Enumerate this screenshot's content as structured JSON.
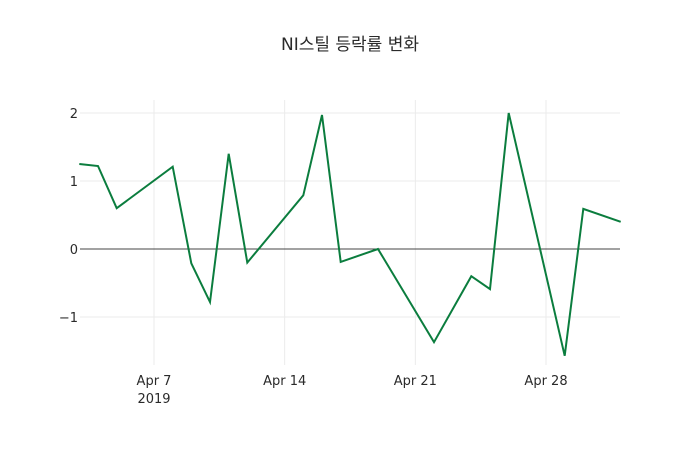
{
  "chart_data": {
    "type": "line",
    "title": "NI스틸 등락률 변화",
    "xlabel": "",
    "ylabel": "",
    "x": [
      "2019-04-03",
      "2019-04-04",
      "2019-04-05",
      "2019-04-08",
      "2019-04-09",
      "2019-04-10",
      "2019-04-11",
      "2019-04-12",
      "2019-04-15",
      "2019-04-16",
      "2019-04-17",
      "2019-04-19",
      "2019-04-22",
      "2019-04-24",
      "2019-04-25",
      "2019-04-26",
      "2019-04-29",
      "2019-04-30",
      "2019-05-02"
    ],
    "series": [
      {
        "name": "등락률",
        "color": "#0b7d3e",
        "values": [
          1.25,
          1.22,
          0.6,
          1.21,
          -0.21,
          -0.78,
          1.4,
          -0.2,
          0.79,
          1.97,
          -0.19,
          0.0,
          -1.37,
          -0.4,
          -0.59,
          2.0,
          -1.57,
          0.59,
          0.4
        ]
      }
    ],
    "x_ticks": [
      {
        "date": "2019-04-07",
        "label": "Apr 7",
        "sublabel": "2019"
      },
      {
        "date": "2019-04-14",
        "label": "Apr 14",
        "sublabel": ""
      },
      {
        "date": "2019-04-21",
        "label": "Apr 21",
        "sublabel": ""
      },
      {
        "date": "2019-04-28",
        "label": "Apr 28",
        "sublabel": ""
      }
    ],
    "y_ticks": [
      {
        "value": 2,
        "label": "2"
      },
      {
        "value": 1,
        "label": "1"
      },
      {
        "value": 0,
        "label": "0"
      },
      {
        "value": -1,
        "label": "−1"
      }
    ],
    "xlim": [
      "2019-04-03",
      "2019-05-02"
    ],
    "ylim": [
      -1.7,
      2.2
    ],
    "grid": true,
    "zero_line": true,
    "legend": "none"
  }
}
